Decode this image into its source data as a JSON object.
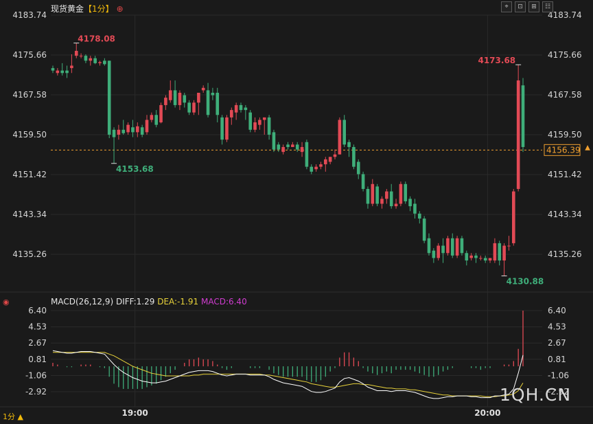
{
  "header": {
    "symbol": "现货黄金",
    "period": "【1分】",
    "plus_icon": "⊕"
  },
  "toolbar": {
    "icons": [
      "crosshair-icon",
      "fit-icon",
      "zoom-icon",
      "settings-icon"
    ],
    "glyphs": [
      "⌖",
      "⊡",
      "⊞",
      "☷"
    ]
  },
  "indicator": {
    "name": "MACD(26,12,9)",
    "diff_label": "DIFF:1.29",
    "dea_label": "DEA:-1.91",
    "macd_label": "MACD:6.40"
  },
  "period_footer": "1分 ▲",
  "watermark": "1QH.CN",
  "colors": {
    "up": "#e24a55",
    "down": "#3fae7a",
    "grid": "#2a2a2a",
    "current_price_line": "#f0a030",
    "diff_line": "#ffffff",
    "dea_line": "#e8d23a",
    "macd_label": "#d03cd0"
  },
  "chart_data": [
    {
      "type": "candlestick",
      "y_ticks": [
        "4183.74",
        "4175.66",
        "4167.58",
        "4159.50",
        "4151.42",
        "4143.34",
        "4135.26"
      ],
      "ylim": [
        4131.0,
        4185.0
      ],
      "x_ticks": [
        "19:00",
        "20:00"
      ],
      "current_price": "4156.39",
      "annotations": {
        "high": "4178.08",
        "low_1": "4153.68",
        "high_2": "4173.68",
        "low_2": "4130.88"
      },
      "ohlc": [
        [
          4173.0,
          4173.5,
          4172.5,
          4172.0
        ],
        [
          4172.0,
          4173.0,
          4172.5,
          4171.5
        ],
        [
          4172.5,
          4174.0,
          4172.0,
          4171.5
        ],
        [
          4172.5,
          4173.5,
          4172.0,
          4171.0
        ],
        [
          4173.0,
          4175.8,
          4173.5,
          4172.0
        ],
        [
          4175.5,
          4178.08,
          4176.5,
          4175.0
        ],
        [
          4175.5,
          4176.0,
          4175.5,
          4175.0
        ],
        [
          4175.5,
          4175.8,
          4174.5,
          4174.0
        ],
        [
          4174.5,
          4175.5,
          4175.0,
          4173.5
        ],
        [
          4175.0,
          4175.5,
          4174.0,
          4173.8
        ],
        [
          4174.0,
          4174.5,
          4174.2,
          4173.5
        ],
        [
          4174.5,
          4175.0,
          4173.8,
          4173.5
        ],
        [
          4174.5,
          4174.5,
          4159.5,
          4158.8
        ],
        [
          4160.5,
          4161.0,
          4159.0,
          4153.68
        ],
        [
          4159.5,
          4161.5,
          4160.5,
          4158.5
        ],
        [
          4160.5,
          4162.5,
          4159.8,
          4159.5
        ],
        [
          4160.0,
          4162.0,
          4161.5,
          4159.5
        ],
        [
          4161.0,
          4162.5,
          4160.0,
          4159.0
        ],
        [
          4160.0,
          4162.0,
          4161.2,
          4159.0
        ],
        [
          4161.0,
          4161.5,
          4159.5,
          4159.0
        ],
        [
          4160.0,
          4163.5,
          4162.5,
          4159.5
        ],
        [
          4162.5,
          4164.0,
          4163.5,
          4162.0
        ],
        [
          4163.5,
          4164.5,
          4161.5,
          4161.0
        ],
        [
          4162.0,
          4166.0,
          4165.5,
          4161.8
        ],
        [
          4165.5,
          4167.5,
          4167.0,
          4164.5
        ],
        [
          4166.5,
          4170.5,
          4168.5,
          4166.0
        ],
        [
          4168.5,
          4170.5,
          4165.5,
          4165.0
        ],
        [
          4165.5,
          4168.5,
          4168.0,
          4164.5
        ],
        [
          4167.5,
          4168.0,
          4166.0,
          4165.0
        ],
        [
          4166.0,
          4166.5,
          4164.0,
          4163.5
        ],
        [
          4164.0,
          4166.5,
          4166.0,
          4163.5
        ],
        [
          4166.0,
          4168.0,
          4168.0,
          4163.5
        ],
        [
          4168.5,
          4169.5,
          4169.0,
          4168.0
        ],
        [
          4168.5,
          4170.0,
          4163.5,
          4163.0
        ],
        [
          4168.0,
          4169.0,
          4167.5,
          4166.5
        ],
        [
          4168.0,
          4169.0,
          4163.5,
          4162.0
        ],
        [
          4163.0,
          4163.5,
          4158.5,
          4157.5
        ],
        [
          4158.5,
          4163.5,
          4163.0,
          4158.0
        ],
        [
          4163.0,
          4165.0,
          4164.5,
          4161.5
        ],
        [
          4164.0,
          4166.0,
          4165.5,
          4162.5
        ],
        [
          4165.5,
          4166.0,
          4164.5,
          4164.0
        ],
        [
          4165.0,
          4165.5,
          4164.5,
          4162.5
        ],
        [
          4164.0,
          4164.5,
          4160.5,
          4160.0
        ],
        [
          4160.5,
          4163.0,
          4162.0,
          4160.0
        ],
        [
          4161.5,
          4163.0,
          4162.5,
          4160.5
        ],
        [
          4162.5,
          4163.0,
          4163.0,
          4159.5
        ],
        [
          4163.0,
          4163.5,
          4159.5,
          4158.5
        ],
        [
          4160.0,
          4160.5,
          4156.5,
          4156.0
        ],
        [
          4157.5,
          4158.0,
          4156.5,
          4156.0
        ],
        [
          4156.0,
          4157.5,
          4157.0,
          4155.5
        ],
        [
          4157.5,
          4158.0,
          4157.0,
          4156.5
        ],
        [
          4157.0,
          4158.0,
          4157.5,
          4157.0
        ],
        [
          4157.5,
          4158.0,
          4156.5,
          4156.0
        ],
        [
          4156.0,
          4158.0,
          4157.0,
          4155.0
        ],
        [
          4158.0,
          4158.5,
          4153.0,
          4152.5
        ],
        [
          4153.0,
          4153.5,
          4152.0,
          4151.5
        ],
        [
          4152.5,
          4153.5,
          4153.0,
          4152.0
        ],
        [
          4153.0,
          4154.0,
          4153.5,
          4152.5
        ],
        [
          4153.5,
          4155.0,
          4154.5,
          4152.0
        ],
        [
          4154.0,
          4155.0,
          4155.0,
          4153.5
        ],
        [
          4155.0,
          4156.5,
          4155.5,
          4154.5
        ],
        [
          4155.5,
          4163.0,
          4162.5,
          4155.5
        ],
        [
          4162.5,
          4163.5,
          4157.5,
          4157.0
        ],
        [
          4158.0,
          4158.5,
          4157.0,
          4155.0
        ],
        [
          4157.0,
          4157.5,
          4153.0,
          4152.5
        ],
        [
          4154.0,
          4154.5,
          4151.5,
          4150.5
        ],
        [
          4151.5,
          4152.0,
          4148.5,
          4148.0
        ],
        [
          4148.5,
          4149.0,
          4145.5,
          4144.5
        ],
        [
          4145.5,
          4150.5,
          4149.5,
          4145.0
        ],
        [
          4149.0,
          4149.5,
          4145.5,
          4145.0
        ],
        [
          4145.5,
          4147.0,
          4146.5,
          4144.5
        ],
        [
          4146.5,
          4148.5,
          4148.0,
          4145.5
        ],
        [
          4148.0,
          4149.5,
          4145.0,
          4144.5
        ],
        [
          4145.0,
          4146.5,
          4145.5,
          4144.5
        ],
        [
          4145.5,
          4150.0,
          4149.5,
          4145.0
        ],
        [
          4149.5,
          4150.0,
          4146.0,
          4145.5
        ],
        [
          4146.5,
          4147.0,
          4145.0,
          4144.0
        ],
        [
          4145.5,
          4146.5,
          4143.5,
          4142.5
        ],
        [
          4143.5,
          4144.0,
          4142.5,
          4141.5
        ],
        [
          4142.5,
          4143.0,
          4138.0,
          4137.5
        ],
        [
          4138.5,
          4139.5,
          4135.5,
          4135.0
        ],
        [
          4136.0,
          4136.5,
          4134.5,
          4133.5
        ],
        [
          4134.5,
          4137.5,
          4137.0,
          4134.0
        ],
        [
          4137.0,
          4138.5,
          4135.5,
          4133.5
        ],
        [
          4135.5,
          4139.0,
          4138.5,
          4135.0
        ],
        [
          4138.5,
          4139.5,
          4135.0,
          4134.5
        ],
        [
          4135.0,
          4139.0,
          4138.5,
          4134.5
        ],
        [
          4138.5,
          4139.0,
          4135.5,
          4135.0
        ],
        [
          4135.5,
          4136.0,
          4134.0,
          4133.0
        ],
        [
          4134.5,
          4135.5,
          4135.0,
          4134.0
        ],
        [
          4135.0,
          4135.5,
          4134.5,
          4133.5
        ],
        [
          4134.5,
          4135.0,
          4134.5,
          4134.0
        ],
        [
          4134.5,
          4135.0,
          4134.0,
          4133.5
        ],
        [
          4134.0,
          4134.5,
          4134.5,
          4133.5
        ],
        [
          4134.0,
          4138.5,
          4137.5,
          4133.5
        ],
        [
          4137.5,
          4138.0,
          4134.0,
          4133.0
        ],
        [
          4134.0,
          4137.5,
          4137.0,
          4130.88
        ],
        [
          4137.0,
          4139.0,
          4137.0,
          4136.0
        ],
        [
          4137.5,
          4148.5,
          4148.0,
          4137.0
        ],
        [
          4148.5,
          4173.68,
          4170.5,
          4148.0
        ],
        [
          4169.5,
          4171.0,
          4157.0,
          4156.0
        ]
      ]
    },
    {
      "type": "bar+line",
      "name": "MACD(26,12,9)",
      "y_ticks": [
        "6.40",
        "4.53",
        "2.67",
        "0.81",
        "-1.06",
        "-2.92"
      ],
      "ylim": [
        -4.5,
        6.7
      ],
      "diff": [
        1.8,
        1.7,
        1.6,
        1.5,
        1.5,
        1.6,
        1.7,
        1.7,
        1.7,
        1.6,
        1.5,
        1.4,
        0.8,
        0.2,
        -0.3,
        -0.7,
        -1.0,
        -1.3,
        -1.5,
        -1.7,
        -1.8,
        -1.9,
        -1.9,
        -1.8,
        -1.7,
        -1.5,
        -1.3,
        -1.1,
        -0.9,
        -0.7,
        -0.6,
        -0.5,
        -0.5,
        -0.5,
        -0.6,
        -0.8,
        -1.0,
        -1.1,
        -1.0,
        -0.9,
        -0.9,
        -0.9,
        -1.0,
        -1.0,
        -1.0,
        -1.0,
        -1.2,
        -1.5,
        -1.7,
        -1.9,
        -2.0,
        -2.1,
        -2.2,
        -2.3,
        -2.6,
        -2.9,
        -3.0,
        -3.0,
        -2.9,
        -2.7,
        -2.5,
        -1.8,
        -1.4,
        -1.3,
        -1.5,
        -1.7,
        -2.0,
        -2.4,
        -2.6,
        -2.8,
        -2.8,
        -2.8,
        -2.9,
        -2.8,
        -2.8,
        -2.8,
        -2.9,
        -3.0,
        -3.2,
        -3.4,
        -3.6,
        -3.7,
        -3.7,
        -3.6,
        -3.5,
        -3.5,
        -3.4,
        -3.4,
        -3.4,
        -3.5,
        -3.5,
        -3.6,
        -3.6,
        -3.6,
        -3.4,
        -3.4,
        -3.3,
        -3.2,
        -2.6,
        -0.8,
        1.29
      ],
      "dea": [
        1.6,
        1.6,
        1.6,
        1.6,
        1.6,
        1.6,
        1.6,
        1.6,
        1.6,
        1.6,
        1.6,
        1.6,
        1.4,
        1.2,
        0.9,
        0.6,
        0.3,
        0.0,
        -0.2,
        -0.4,
        -0.6,
        -0.8,
        -0.9,
        -1.0,
        -1.1,
        -1.1,
        -1.1,
        -1.1,
        -1.1,
        -1.1,
        -1.0,
        -1.0,
        -0.9,
        -0.9,
        -0.9,
        -0.9,
        -0.9,
        -0.9,
        -0.9,
        -0.9,
        -0.9,
        -0.9,
        -0.9,
        -0.9,
        -0.9,
        -1.0,
        -1.0,
        -1.1,
        -1.2,
        -1.3,
        -1.4,
        -1.5,
        -1.6,
        -1.7,
        -1.8,
        -2.0,
        -2.1,
        -2.2,
        -2.3,
        -2.4,
        -2.4,
        -2.3,
        -2.2,
        -2.1,
        -2.0,
        -2.0,
        -2.1,
        -2.1,
        -2.2,
        -2.3,
        -2.4,
        -2.5,
        -2.5,
        -2.6,
        -2.6,
        -2.6,
        -2.7,
        -2.7,
        -2.8,
        -2.9,
        -3.0,
        -3.1,
        -3.2,
        -3.3,
        -3.3,
        -3.4,
        -3.4,
        -3.4,
        -3.4,
        -3.4,
        -3.4,
        -3.4,
        -3.5,
        -3.5,
        -3.5,
        -3.4,
        -3.4,
        -3.3,
        -3.2,
        -2.8,
        -1.91
      ],
      "macd": [
        0.4,
        0.2,
        0.0,
        -0.1,
        -0.1,
        0.0,
        0.2,
        0.2,
        0.2,
        0.0,
        -0.1,
        -0.2,
        -1.2,
        -2.0,
        -2.4,
        -2.6,
        -2.6,
        -2.6,
        -2.6,
        -2.6,
        -2.4,
        -2.2,
        -2.0,
        -1.6,
        -1.2,
        -0.8,
        -0.4,
        0.0,
        0.4,
        0.8,
        0.8,
        1.0,
        0.8,
        0.8,
        0.6,
        0.2,
        -0.2,
        -0.4,
        -0.2,
        0.0,
        0.0,
        0.0,
        -0.2,
        -0.2,
        -0.2,
        0.0,
        -0.4,
        -0.8,
        -1.0,
        -1.2,
        -1.2,
        -1.2,
        -1.2,
        -1.2,
        -1.6,
        -1.8,
        -1.8,
        -1.6,
        -1.2,
        -0.6,
        -0.2,
        1.0,
        1.6,
        1.6,
        1.0,
        0.6,
        -0.2,
        -0.6,
        -0.8,
        -1.0,
        -0.8,
        -0.6,
        -0.8,
        -0.4,
        -0.4,
        -0.4,
        -0.4,
        -0.6,
        -0.8,
        -1.0,
        -1.2,
        -1.2,
        -1.0,
        -0.6,
        -0.4,
        -0.2,
        0.0,
        0.0,
        0.0,
        -0.2,
        -0.2,
        -0.4,
        -0.2,
        -0.2,
        0.0,
        0.0,
        0.2,
        0.2,
        0.6,
        2.0,
        6.4
      ]
    }
  ]
}
